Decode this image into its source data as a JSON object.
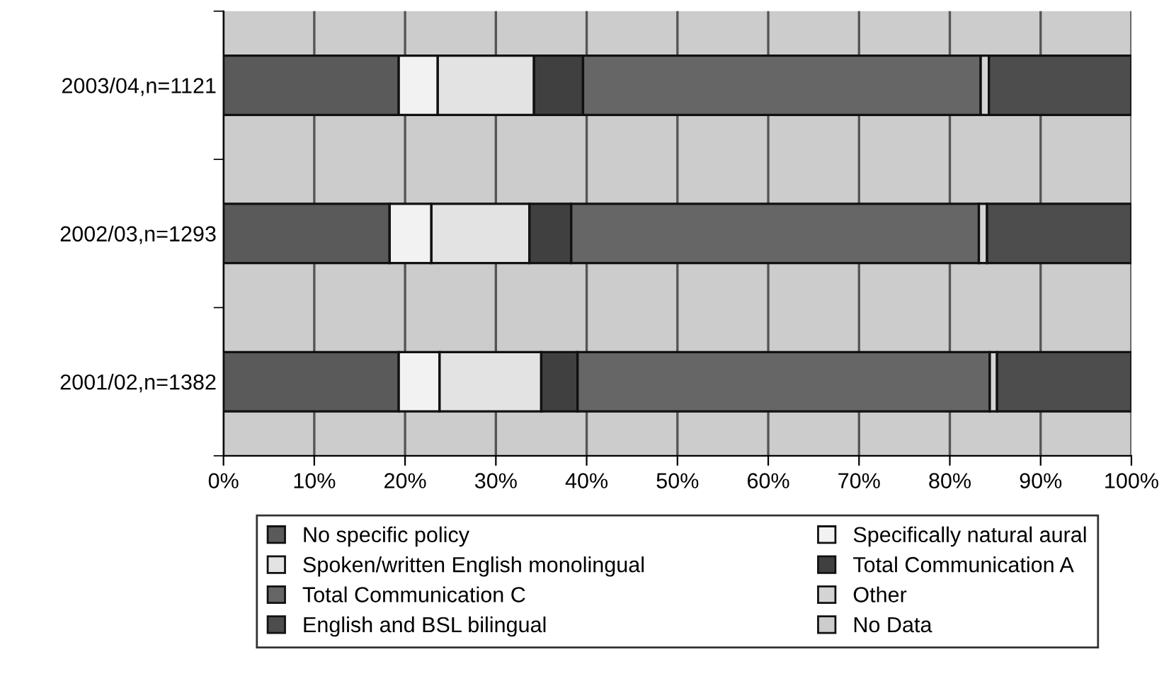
{
  "chart_data": {
    "type": "bar",
    "orientation": "horizontal",
    "stacked": true,
    "categories": [
      "2003/04,n=1121",
      "2002/03,n=1293",
      "2001/02,n=1382"
    ],
    "series": [
      {
        "name": "No specific policy",
        "color": "#5a5a5a",
        "values": [
          19.3,
          18.3,
          19.3
        ]
      },
      {
        "name": "Specifically natural aural",
        "color": "#f2f2f2",
        "values": [
          4.3,
          4.6,
          4.5
        ]
      },
      {
        "name": "Spoken/written English monolingual",
        "color": "#e3e3e3",
        "values": [
          10.6,
          10.8,
          11.2
        ]
      },
      {
        "name": "Total Communication A",
        "color": "#404040",
        "values": [
          5.4,
          4.6,
          4.0
        ]
      },
      {
        "name": "Total Communication C",
        "color": "#666666",
        "values": [
          43.8,
          44.9,
          45.4
        ]
      },
      {
        "name": "Other",
        "color": "#d4d4d4",
        "values": [
          0.9,
          0.9,
          0.8
        ]
      },
      {
        "name": "English and BSL bilingual",
        "color": "#4d4d4d",
        "values": [
          15.7,
          15.9,
          14.8
        ]
      },
      {
        "name": "No Data",
        "color": "#cccccc",
        "values": [
          null,
          null,
          null
        ]
      }
    ],
    "xlim": [
      0,
      100
    ],
    "xticks": [
      {
        "value": 0,
        "label": "0%"
      },
      {
        "value": 10,
        "label": "10%"
      },
      {
        "value": 20,
        "label": "20%"
      },
      {
        "value": 30,
        "label": "30%"
      },
      {
        "value": 40,
        "label": "40%"
      },
      {
        "value": 50,
        "label": "50%"
      },
      {
        "value": 60,
        "label": "60%"
      },
      {
        "value": 70,
        "label": "70%"
      },
      {
        "value": 80,
        "label": "80%"
      },
      {
        "value": 90,
        "label": "90%"
      },
      {
        "value": 100,
        "label": "100%"
      }
    ],
    "grid": "x",
    "legend": "bottom"
  }
}
